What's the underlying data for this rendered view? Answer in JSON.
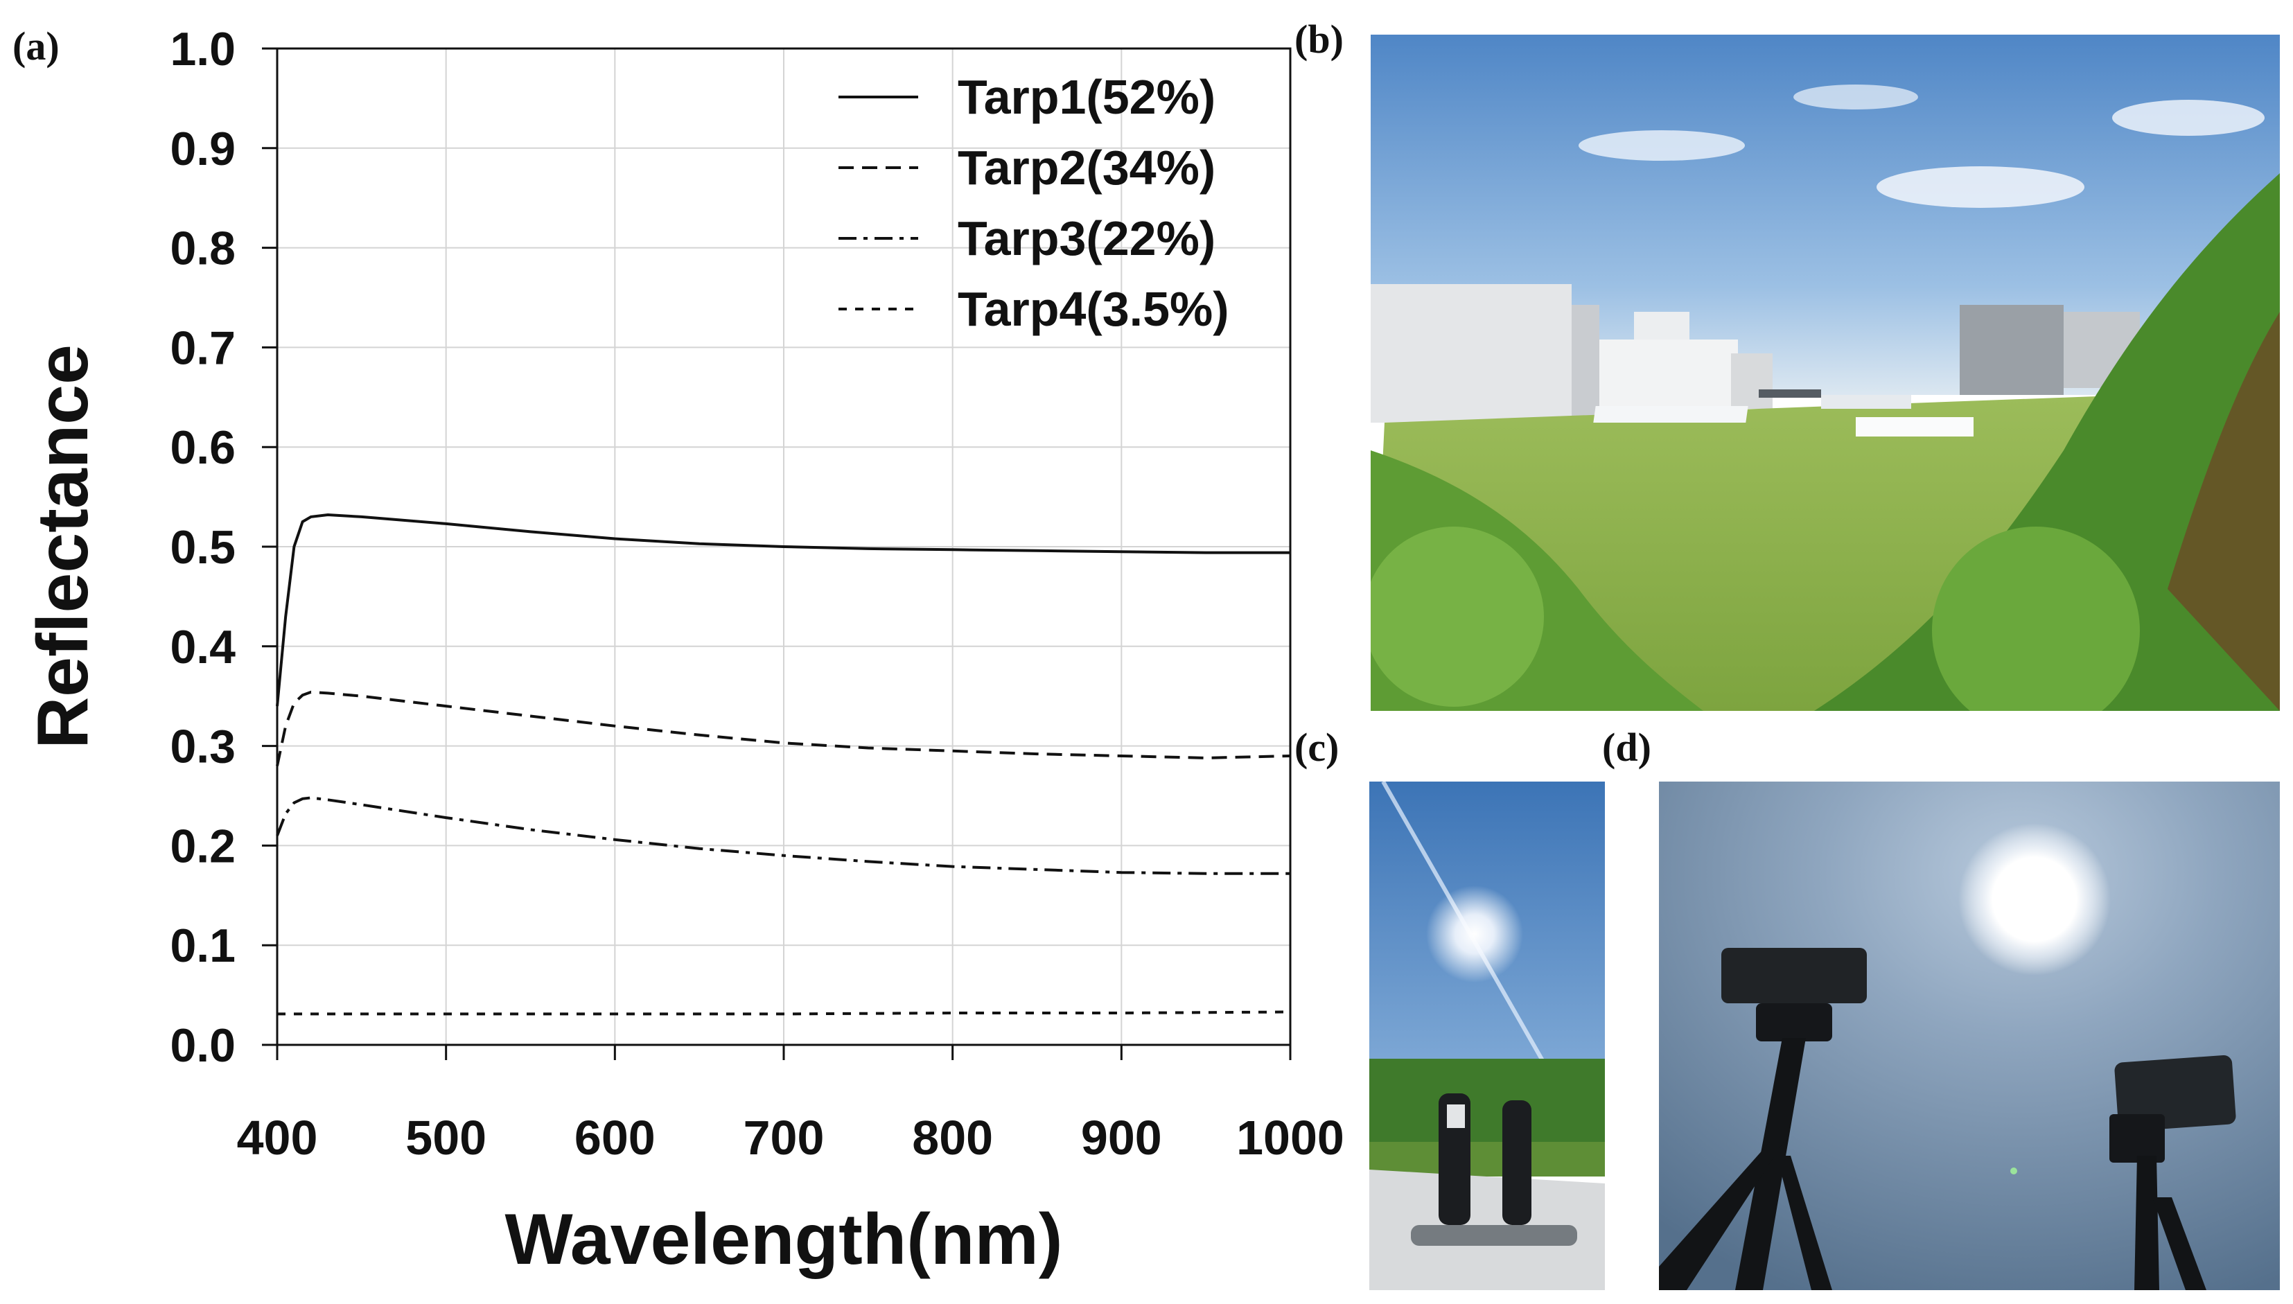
{
  "panels": {
    "a": "(a)",
    "b": "(b)",
    "c": "(c)",
    "d": "(d)"
  },
  "chart_data": {
    "type": "line",
    "title": "",
    "xlabel": "Wavelength(nm)",
    "ylabel": "Reflectance",
    "xlim": [
      400,
      1000
    ],
    "ylim": [
      0.0,
      1.0
    ],
    "xticks": [
      400,
      500,
      600,
      700,
      800,
      900,
      1000
    ],
    "yticks": [
      0.0,
      0.1,
      0.2,
      0.3,
      0.4,
      0.5,
      0.6,
      0.7,
      0.8,
      0.9,
      1.0
    ],
    "ytick_labels": [
      "0.0",
      "0.1",
      "0.2",
      "0.3",
      "0.4",
      "0.5",
      "0.6",
      "0.7",
      "0.8",
      "0.9",
      "1.0"
    ],
    "grid": true,
    "legend_position": "top-right",
    "series": [
      {
        "name": "Tarp1(52%)",
        "style": "solid",
        "x": [
          400,
          405,
          410,
          415,
          420,
          430,
          450,
          500,
          550,
          600,
          650,
          700,
          750,
          800,
          850,
          900,
          950,
          1000
        ],
        "values": [
          0.34,
          0.43,
          0.5,
          0.525,
          0.53,
          0.532,
          0.53,
          0.523,
          0.515,
          0.508,
          0.503,
          0.5,
          0.498,
          0.497,
          0.496,
          0.495,
          0.494,
          0.494
        ]
      },
      {
        "name": "Tarp2(34%)",
        "style": "dashed",
        "x": [
          400,
          405,
          410,
          415,
          420,
          430,
          450,
          500,
          550,
          600,
          650,
          700,
          750,
          800,
          850,
          900,
          950,
          1000
        ],
        "values": [
          0.28,
          0.32,
          0.343,
          0.351,
          0.354,
          0.353,
          0.35,
          0.34,
          0.33,
          0.32,
          0.311,
          0.303,
          0.298,
          0.295,
          0.292,
          0.29,
          0.288,
          0.29
        ]
      },
      {
        "name": "Tarp3(22%)",
        "style": "dashdot",
        "x": [
          400,
          405,
          410,
          415,
          420,
          430,
          450,
          500,
          550,
          600,
          650,
          700,
          750,
          800,
          850,
          900,
          950,
          1000
        ],
        "values": [
          0.21,
          0.232,
          0.243,
          0.247,
          0.248,
          0.246,
          0.241,
          0.228,
          0.216,
          0.206,
          0.197,
          0.19,
          0.184,
          0.179,
          0.176,
          0.173,
          0.172,
          0.172
        ]
      },
      {
        "name": "Tarp4(3.5%)",
        "style": "shortdash",
        "x": [
          400,
          500,
          600,
          700,
          800,
          900,
          1000
        ],
        "values": [
          0.031,
          0.031,
          0.031,
          0.031,
          0.032,
          0.032,
          0.033
        ]
      }
    ]
  },
  "colors": {
    "line": "#111111",
    "grid": "#d4d4d4",
    "sky": "#6f9fd2",
    "grass": "#8db04b",
    "foliage": "#4f8a2e",
    "sun": "#ffffff"
  },
  "photos": {
    "b": "field-with-tarps",
    "c": "people-on-tarp-facing-sun",
    "d": "sensors-on-tripods-facing-sun"
  }
}
